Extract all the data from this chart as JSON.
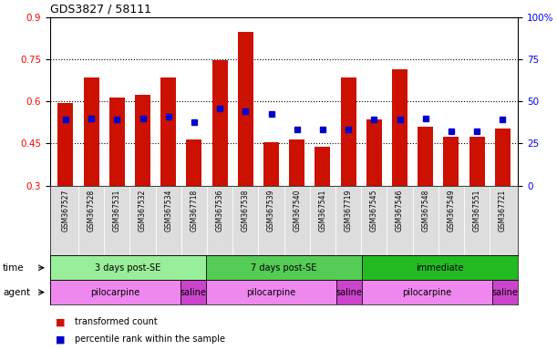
{
  "title": "GDS3827 / 58111",
  "samples": [
    "GSM367527",
    "GSM367528",
    "GSM367531",
    "GSM367532",
    "GSM367534",
    "GSM367718",
    "GSM367536",
    "GSM367538",
    "GSM367539",
    "GSM367540",
    "GSM367541",
    "GSM367719",
    "GSM367545",
    "GSM367546",
    "GSM367548",
    "GSM367549",
    "GSM367551",
    "GSM367721"
  ],
  "red_values": [
    0.595,
    0.685,
    0.615,
    0.625,
    0.685,
    0.465,
    0.748,
    0.85,
    0.455,
    0.465,
    0.44,
    0.685,
    0.535,
    0.715,
    0.51,
    0.475,
    0.475,
    0.505
  ],
  "blue_values": [
    0.535,
    0.54,
    0.535,
    0.54,
    0.545,
    0.525,
    0.575,
    0.565,
    0.555,
    0.5,
    0.5,
    0.5,
    0.535,
    0.535,
    0.54,
    0.495,
    0.495,
    0.535
  ],
  "ylim": [
    0.3,
    0.9
  ],
  "yticks_left": [
    0.3,
    0.45,
    0.6,
    0.75,
    0.9
  ],
  "yticks_right": [
    0,
    25,
    50,
    75,
    100
  ],
  "bar_color": "#CC1100",
  "dot_color": "#0000CC",
  "time_groups": [
    {
      "label": "3 days post-SE",
      "start": 0,
      "end": 6,
      "color": "#99EE99"
    },
    {
      "label": "7 days post-SE",
      "start": 6,
      "end": 12,
      "color": "#55CC55"
    },
    {
      "label": "immediate",
      "start": 12,
      "end": 18,
      "color": "#22BB22"
    }
  ],
  "agent_groups": [
    {
      "label": "pilocarpine",
      "start": 0,
      "end": 5,
      "color": "#EE88EE"
    },
    {
      "label": "saline",
      "start": 5,
      "end": 6,
      "color": "#CC44CC"
    },
    {
      "label": "pilocarpine",
      "start": 6,
      "end": 11,
      "color": "#EE88EE"
    },
    {
      "label": "saline",
      "start": 11,
      "end": 12,
      "color": "#CC44CC"
    },
    {
      "label": "pilocarpine",
      "start": 12,
      "end": 17,
      "color": "#EE88EE"
    },
    {
      "label": "saline",
      "start": 17,
      "end": 18,
      "color": "#CC44CC"
    }
  ],
  "legend_red": "transformed count",
  "legend_blue": "percentile rank within the sample",
  "time_label": "time",
  "agent_label": "agent"
}
